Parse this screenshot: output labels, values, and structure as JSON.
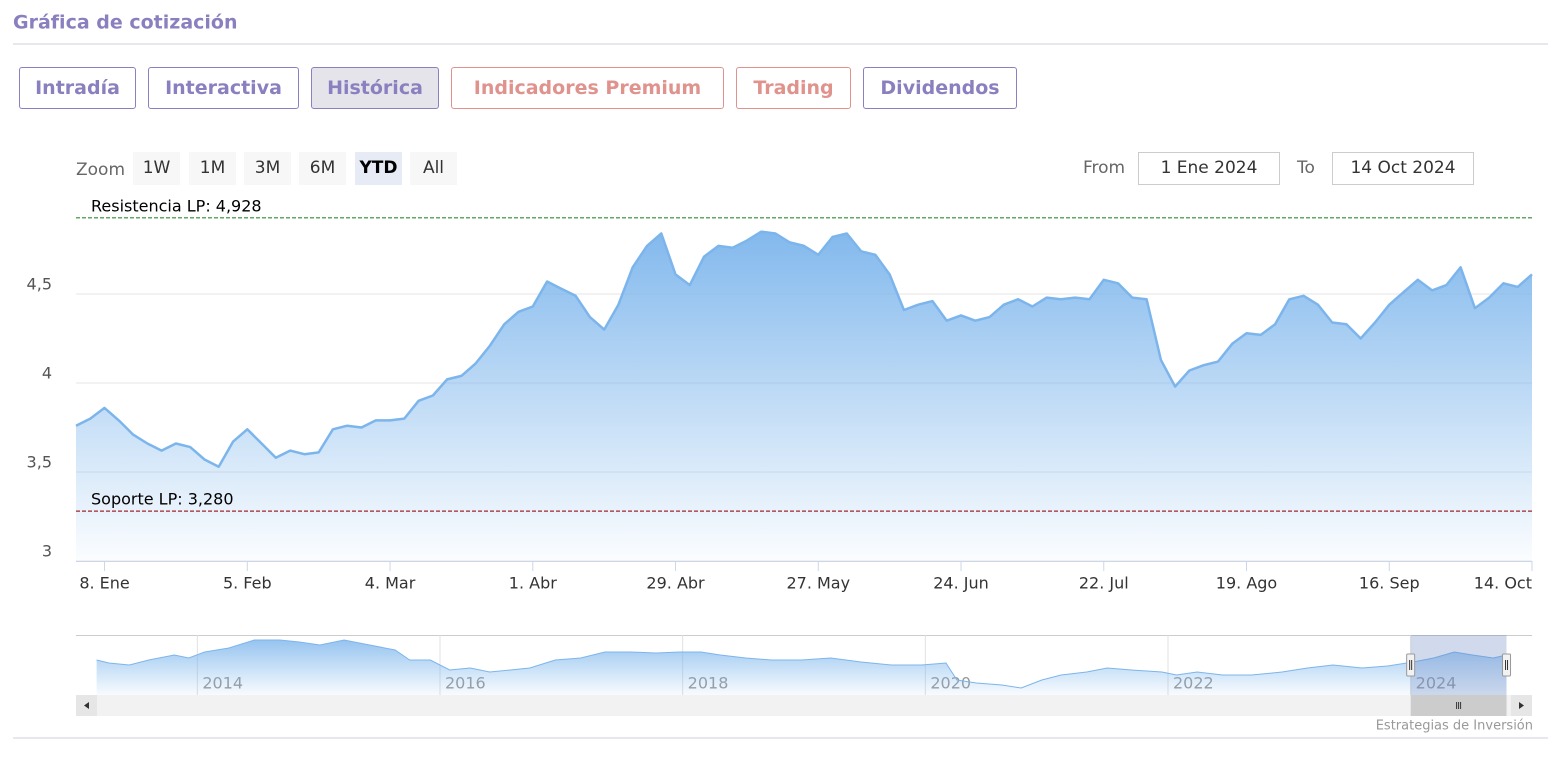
{
  "header": {
    "title": "Gráfica de cotización"
  },
  "tabs": [
    {
      "label": "Intradía",
      "color": "#8a80bf"
    },
    {
      "label": "Interactiva",
      "color": "#8a80bf"
    },
    {
      "label": "Histórica",
      "color": "#8a80bf",
      "selected": true
    },
    {
      "label": "Indicadores Premium",
      "color": "#e0928d"
    },
    {
      "label": "Trading",
      "color": "#e0928d"
    },
    {
      "label": "Dividendos",
      "color": "#8a80bf"
    }
  ],
  "range_selector": {
    "label": "Zoom",
    "buttons": [
      "1W",
      "1M",
      "3M",
      "6M",
      "YTD",
      "All"
    ],
    "selected": "YTD",
    "from_label": "From",
    "from": "1 Ene 2024",
    "to_label": "To",
    "to": "14 Oct 2024"
  },
  "chart_data": [
    {
      "type": "area",
      "color": "#7cb5ec",
      "categories": [
        null,
        null,
        "8. Ene",
        null,
        null,
        null,
        null,
        null,
        null,
        null,
        null,
        null,
        "5. Feb",
        null,
        null,
        null,
        null,
        null,
        null,
        null,
        null,
        null,
        "4. Mar",
        null,
        null,
        null,
        null,
        null,
        null,
        null,
        null,
        null,
        "1. Abr",
        null,
        null,
        null,
        null,
        null,
        null,
        null,
        null,
        null,
        "29. Abr",
        null,
        null,
        null,
        null,
        null,
        null,
        null,
        null,
        null,
        "27. May",
        null,
        null,
        null,
        null,
        null,
        null,
        null,
        null,
        null,
        "24. Jun",
        null,
        null,
        null,
        null,
        null,
        null,
        null,
        null,
        null,
        "22. Jul",
        null,
        null,
        null,
        null,
        null,
        null,
        null,
        null,
        null,
        "19. Ago",
        null,
        null,
        null,
        null,
        null,
        null,
        null,
        null,
        null,
        "16. Sep",
        null,
        null,
        null,
        null,
        null,
        null,
        null,
        null,
        null,
        "14. Oct"
      ],
      "values": [
        3.76,
        3.8,
        3.86,
        3.79,
        3.71,
        3.66,
        3.62,
        3.66,
        3.64,
        3.57,
        3.53,
        3.67,
        3.74,
        3.66,
        3.58,
        3.62,
        3.6,
        3.61,
        3.74,
        3.76,
        3.75,
        3.79,
        3.79,
        3.8,
        3.9,
        3.93,
        4.02,
        4.04,
        4.11,
        4.21,
        4.33,
        4.4,
        4.43,
        4.57,
        4.53,
        4.49,
        4.37,
        4.3,
        4.44,
        4.65,
        4.77,
        4.84,
        4.61,
        4.55,
        4.71,
        4.77,
        4.76,
        4.8,
        4.85,
        4.84,
        4.79,
        4.77,
        4.72,
        4.82,
        4.84,
        4.74,
        4.72,
        4.61,
        4.41,
        4.44,
        4.46,
        4.35,
        4.38,
        4.35,
        4.37,
        4.44,
        4.47,
        4.43,
        4.48,
        4.47,
        4.48,
        4.47,
        4.58,
        4.56,
        4.48,
        4.47,
        4.13,
        3.98,
        4.07,
        4.1,
        4.12,
        4.22,
        4.28,
        4.27,
        4.33,
        4.47,
        4.49,
        4.44,
        4.34,
        4.33,
        4.25,
        4.34,
        4.44,
        4.51,
        4.58,
        4.52,
        4.55,
        4.65,
        4.42,
        4.48,
        4.56,
        4.54,
        4.61
      ],
      "ylim": [
        3,
        5
      ],
      "yticks": [
        3,
        {
          "value": 3.5,
          "label": "3,5"
        },
        4,
        {
          "value": 4.5,
          "label": "4,5"
        }
      ],
      "grid": true,
      "plot_lines": [
        {
          "label": "Resistencia LP: 4,928",
          "value": 4.928,
          "color": "#2e8b2e"
        },
        {
          "label": "Soporte LP: 3,280",
          "value": 3.28,
          "color": "#a0282d"
        }
      ]
    },
    {
      "type": "navigator",
      "color": "#7cb5ec",
      "x": [
        2013.17,
        2013.27,
        2013.44,
        2013.6,
        2013.81,
        2013.93,
        2014.06,
        2014.26,
        2014.47,
        2014.68,
        2014.84,
        2015.01,
        2015.21,
        2015.42,
        2015.63,
        2015.75,
        2015.92,
        2016.08,
        2016.25,
        2016.41,
        2016.58,
        2016.74,
        2016.95,
        2017.16,
        2017.36,
        2017.57,
        2017.78,
        2017.98,
        2018.15,
        2018.31,
        2018.52,
        2018.73,
        2018.98,
        2019.22,
        2019.47,
        2019.72,
        2019.97,
        2020.17,
        2020.26,
        2020.42,
        2020.63,
        2020.79,
        2020.96,
        2021.12,
        2021.33,
        2021.5,
        2021.7,
        2021.95,
        2022.07,
        2022.24,
        2022.45,
        2022.69,
        2022.94,
        2023.15,
        2023.36,
        2023.6,
        2023.81,
        2024.02,
        2024.19,
        2024.36,
        2024.51,
        2024.68,
        2024.79
      ],
      "values": [
        4.0,
        3.7,
        3.5,
        4.0,
        4.5,
        4.2,
        4.8,
        5.2,
        6.0,
        6.0,
        5.8,
        5.5,
        6.0,
        5.5,
        5.0,
        4.0,
        4.0,
        3.0,
        3.2,
        2.8,
        3.0,
        3.2,
        4.0,
        4.2,
        4.8,
        4.8,
        4.7,
        4.8,
        4.8,
        4.5,
        4.2,
        4.0,
        4.0,
        4.2,
        3.8,
        3.5,
        3.5,
        3.7,
        2.0,
        1.7,
        1.5,
        1.2,
        2.0,
        2.5,
        2.8,
        3.2,
        3.0,
        2.8,
        2.5,
        2.8,
        2.5,
        2.5,
        2.8,
        3.2,
        3.5,
        3.2,
        3.4,
        3.8,
        4.2,
        4.8,
        4.5,
        4.2,
        4.5
      ],
      "xlim": [
        2013,
        2025
      ],
      "ylim": [
        0.5,
        6.5
      ],
      "xticks": [
        2014,
        2016,
        2018,
        2020,
        2022,
        2024
      ]
    }
  ],
  "credits": "Estrategias de Inversión"
}
